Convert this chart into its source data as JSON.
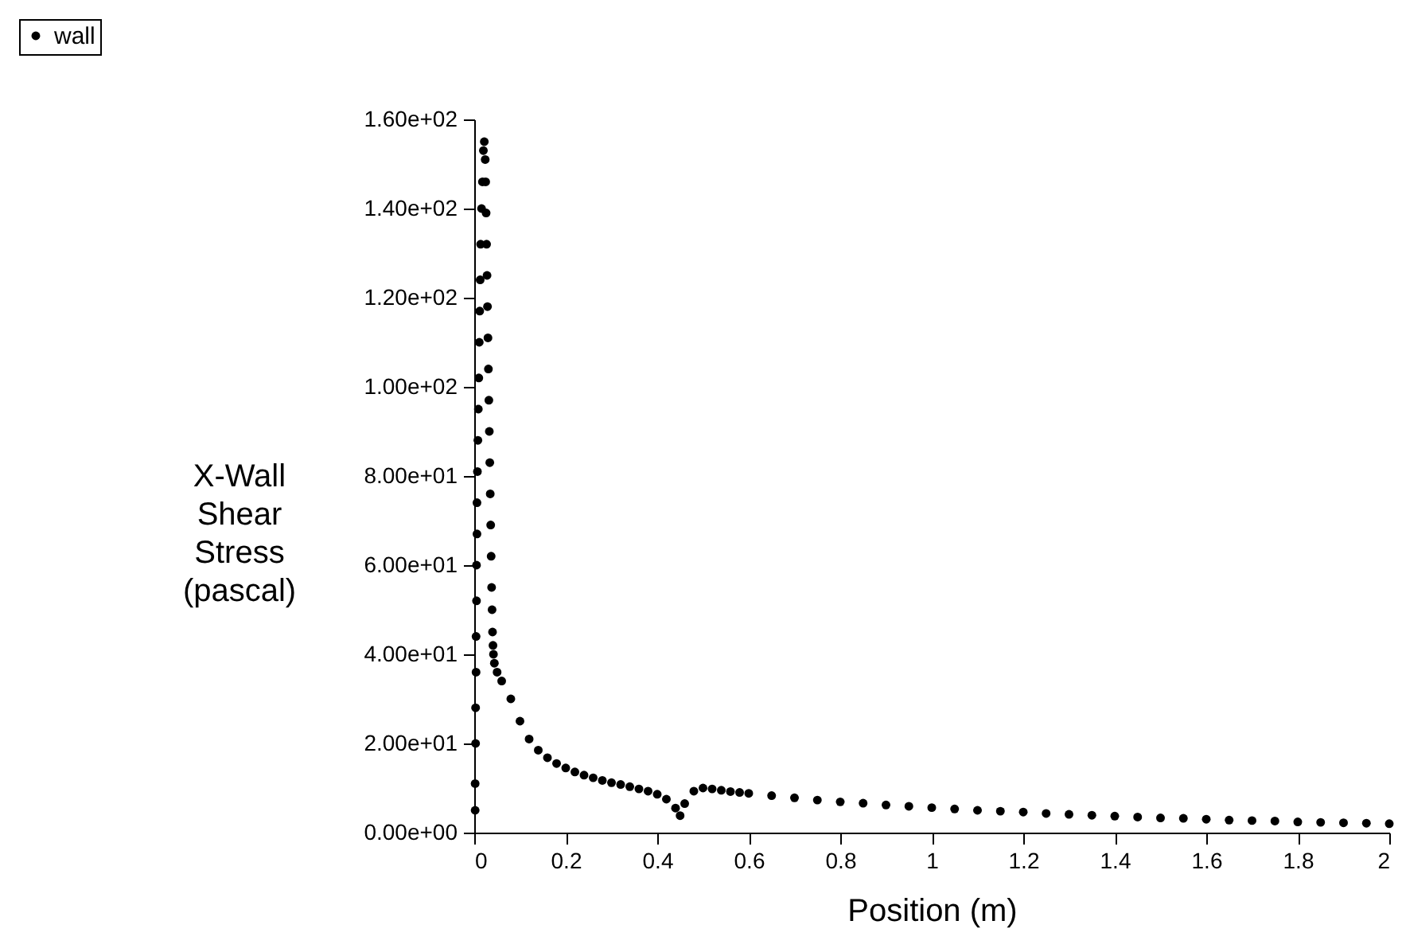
{
  "chart_data": {
    "type": "scatter",
    "xlabel": "Position (m)",
    "ylabel": "X-Wall Shear Stress (pascal)",
    "xlim": [
      0,
      2
    ],
    "xticks": [
      0,
      0.2,
      0.4,
      0.6,
      0.8,
      1,
      1.2,
      1.4,
      1.6,
      1.8,
      2
    ],
    "ylim": [
      0,
      160
    ],
    "yticks": [
      {
        "value": 0,
        "label": "0.00e+00"
      },
      {
        "value": 20,
        "label": "2.00e+01"
      },
      {
        "value": 40,
        "label": "4.00e+01"
      },
      {
        "value": 60,
        "label": "6.00e+01"
      },
      {
        "value": 80,
        "label": "8.00e+01"
      },
      {
        "value": 100,
        "label": "1.00e+02"
      },
      {
        "value": 120,
        "label": "1.20e+02"
      },
      {
        "value": 140,
        "label": "1.40e+02"
      },
      {
        "value": 160,
        "label": "1.60e+02"
      }
    ],
    "grid": false,
    "legend": "top left",
    "marker": "circle",
    "series": [
      {
        "name": "wall",
        "color": "#000000",
        "x": [
          0.002,
          0.002,
          0.003,
          0.003,
          0.004,
          0.004,
          0.005,
          0.005,
          0.006,
          0.006,
          0.007,
          0.008,
          0.009,
          0.01,
          0.011,
          0.012,
          0.013,
          0.014,
          0.016,
          0.018,
          0.02,
          0.022,
          0.024,
          0.025,
          0.026,
          0.027,
          0.028,
          0.029,
          0.03,
          0.031,
          0.032,
          0.033,
          0.034,
          0.035,
          0.036,
          0.037,
          0.038,
          0.039,
          0.04,
          0.041,
          0.042,
          0.044,
          0.05,
          0.06,
          0.08,
          0.1,
          0.12,
          0.14,
          0.16,
          0.18,
          0.2,
          0.22,
          0.24,
          0.26,
          0.28,
          0.3,
          0.32,
          0.34,
          0.36,
          0.38,
          0.4,
          0.42,
          0.44,
          0.45,
          0.46,
          0.48,
          0.5,
          0.52,
          0.54,
          0.56,
          0.58,
          0.6,
          0.65,
          0.7,
          0.75,
          0.8,
          0.85,
          0.9,
          0.95,
          1,
          1.05,
          1.1,
          1.15,
          1.2,
          1.25,
          1.3,
          1.35,
          1.4,
          1.45,
          1.5,
          1.55,
          1.6,
          1.65,
          1.7,
          1.75,
          1.8,
          1.85,
          1.9,
          1.95,
          2
        ],
        "values": [
          5,
          11,
          20,
          28,
          36,
          44,
          52,
          60,
          67,
          74,
          81,
          88,
          95,
          102,
          110,
          117,
          124,
          132,
          140,
          146,
          153,
          155,
          151,
          146,
          139,
          132,
          125,
          118,
          111,
          104,
          97,
          90,
          83,
          76,
          69,
          62,
          55,
          50,
          45,
          42,
          40,
          38,
          36,
          34,
          30,
          25,
          21,
          18.5,
          16.8,
          15.5,
          14.5,
          13.6,
          12.9,
          12.3,
          11.7,
          11.2,
          10.8,
          10.3,
          9.8,
          9.3,
          8.6,
          7.5,
          5.5,
          3.8,
          6.5,
          9.3,
          10,
          9.8,
          9.5,
          9.2,
          9,
          8.8,
          8.3,
          7.8,
          7.3,
          6.9,
          6.6,
          6.2,
          5.9,
          5.6,
          5.3,
          5,
          4.8,
          4.6,
          4.3,
          4.1,
          3.9,
          3.7,
          3.5,
          3.3,
          3.2,
          3,
          2.8,
          2.7,
          2.6,
          2.4,
          2.3,
          2.2,
          2.1,
          2
        ]
      }
    ]
  }
}
